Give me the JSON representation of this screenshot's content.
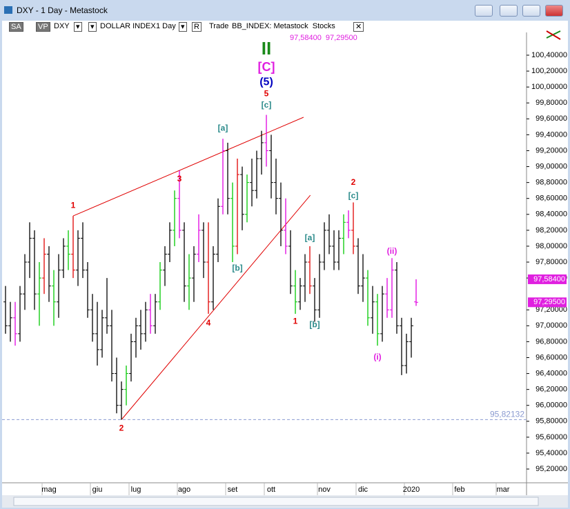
{
  "window": {
    "title": "DXY - 1 Day - Metastock",
    "toolbar": [
      "SA",
      "VP",
      "DXY",
      "DOLLAR INDEX",
      "1 Day",
      "R",
      "Trade",
      "BB_INDEX: Metastock  Stocks"
    ]
  },
  "chart_data": {
    "type": "ohlc",
    "open": [
      97.3,
      97.0,
      97.1,
      96.9,
      97.4,
      97.8,
      98.1,
      97.4,
      97.6,
      97.9,
      97.5,
      97.3,
      97.7,
      98.0,
      97.9,
      97.7,
      98.1,
      97.7,
      97.2,
      96.9,
      96.7,
      97.1,
      97.0,
      96.4,
      96.0,
      96.2,
      96.4,
      96.8,
      97.0,
      96.9,
      97.2,
      97.0,
      97.3,
      97.7,
      97.9,
      98.2,
      98.6,
      98.2,
      97.5,
      97.6,
      97.9,
      98.2,
      97.8,
      97.3,
      97.9,
      98.5,
      99.2,
      98.6,
      98.0,
      98.9,
      98.4,
      98.8,
      98.7,
      99.1,
      99.3,
      99.2,
      98.8,
      98.6,
      98.2,
      98.0,
      97.5,
      97.3,
      97.5,
      97.8,
      97.5,
      97.2,
      97.8,
      98.2,
      98.0,
      97.8,
      98.1,
      98.3,
      98.2,
      98.0,
      97.5,
      97.6,
      97.1,
      97.3,
      96.9,
      97.4,
      97.2,
      97.7,
      97.0,
      96.5,
      96.8,
      97.3
    ],
    "high": [
      97.5,
      97.3,
      97.3,
      97.5,
      97.9,
      98.3,
      98.2,
      97.8,
      98.1,
      98.0,
      97.7,
      97.9,
      98.1,
      98.2,
      98.38,
      98.2,
      98.3,
      97.8,
      97.4,
      97.3,
      97.2,
      97.6,
      97.2,
      96.6,
      96.3,
      96.5,
      96.9,
      97.1,
      97.2,
      97.3,
      97.4,
      97.4,
      97.8,
      98.0,
      98.3,
      98.7,
      98.95,
      98.3,
      97.9,
      98.0,
      98.4,
      98.3,
      98.3,
      98.0,
      98.6,
      99.35,
      99.3,
      98.8,
      99.1,
      99.0,
      98.9,
      99.1,
      99.2,
      99.45,
      99.65,
      99.4,
      99.1,
      98.8,
      98.6,
      98.2,
      97.7,
      97.6,
      97.9,
      98.0,
      97.6,
      97.9,
      98.3,
      98.4,
      98.2,
      98.2,
      98.4,
      98.45,
      98.55,
      98.1,
      97.9,
      97.7,
      97.5,
      97.4,
      97.5,
      97.6,
      97.85,
      97.8,
      97.1,
      96.9,
      97.1,
      97.584
    ],
    "low": [
      96.9,
      96.8,
      96.75,
      96.8,
      97.2,
      97.6,
      97.2,
      97.0,
      97.4,
      97.3,
      97.0,
      97.1,
      97.6,
      97.7,
      97.6,
      97.5,
      97.6,
      97.1,
      96.8,
      96.5,
      96.6,
      96.9,
      96.3,
      95.9,
      95.82,
      96.0,
      96.3,
      96.6,
      96.7,
      96.8,
      96.9,
      96.9,
      97.2,
      97.5,
      97.8,
      98.0,
      98.1,
      97.3,
      97.2,
      97.3,
      97.8,
      97.6,
      97.15,
      97.2,
      97.8,
      98.4,
      98.4,
      97.8,
      97.9,
      98.2,
      98.3,
      98.5,
      98.6,
      98.9,
      99.0,
      98.6,
      98.4,
      98.0,
      97.9,
      97.4,
      97.15,
      97.2,
      97.3,
      97.4,
      97.05,
      97.1,
      97.7,
      97.9,
      97.7,
      97.7,
      97.9,
      98.1,
      97.9,
      97.4,
      97.3,
      97.0,
      96.9,
      96.75,
      96.8,
      97.1,
      97.1,
      96.9,
      96.38,
      96.4,
      96.6,
      97.25
    ],
    "close": [
      97.0,
      97.1,
      96.9,
      97.4,
      97.8,
      98.1,
      97.4,
      97.6,
      97.9,
      97.5,
      97.3,
      97.7,
      98.0,
      97.9,
      97.7,
      98.1,
      97.7,
      97.2,
      96.9,
      96.7,
      97.1,
      97.0,
      96.4,
      96.0,
      96.2,
      96.4,
      96.8,
      97.0,
      96.9,
      97.2,
      97.0,
      97.3,
      97.7,
      97.9,
      98.2,
      98.6,
      98.2,
      97.5,
      97.6,
      97.9,
      98.2,
      97.8,
      97.3,
      97.9,
      98.5,
      99.2,
      98.6,
      98.0,
      98.9,
      98.4,
      98.8,
      98.7,
      99.1,
      99.3,
      99.2,
      98.8,
      98.6,
      98.2,
      98.0,
      97.5,
      97.3,
      97.5,
      97.8,
      97.5,
      97.2,
      97.8,
      98.2,
      98.0,
      97.8,
      98.1,
      98.3,
      98.2,
      98.0,
      97.5,
      97.6,
      97.1,
      97.3,
      96.9,
      97.4,
      97.2,
      97.7,
      97.0,
      96.5,
      96.8,
      97.0,
      97.295
    ],
    "bar_colors": [
      "#000000",
      "#000000",
      "#e000e0",
      "#000000",
      "#000000",
      "#000000",
      "#000000",
      "#00c800",
      "#e00000",
      "#000000",
      "#00c800",
      "#000000",
      "#000000",
      "#00c800",
      "#e00000",
      "#000000",
      "#000000",
      "#000000",
      "#000000",
      "#000000",
      "#000000",
      "#000000",
      "#000000",
      "#000000",
      "#000000",
      "#00c800",
      "#000000",
      "#000000",
      "#000000",
      "#000000",
      "#e000e0",
      "#000000",
      "#00c800",
      "#000000",
      "#000000",
      "#00c800",
      "#e000e0",
      "#000000",
      "#00c800",
      "#000000",
      "#e000e0",
      "#000000",
      "#e00000",
      "#000000",
      "#000000",
      "#e000e0",
      "#000000",
      "#00c800",
      "#e00000",
      "#000000",
      "#00c800",
      "#000000",
      "#000000",
      "#000000",
      "#e000e0",
      "#000000",
      "#000000",
      "#000000",
      "#e000e0",
      "#000000",
      "#00c800",
      "#000000",
      "#000000",
      "#e00000",
      "#000000",
      "#000000",
      "#000000",
      "#000000",
      "#000000",
      "#000000",
      "#00c800",
      "#e000e0",
      "#e00000",
      "#000000",
      "#000000",
      "#00c800",
      "#000000",
      "#00c800",
      "#000000",
      "#e000e0",
      "#e000e0",
      "#000000",
      "#000000",
      "#000000",
      "#000000",
      "#e000e0"
    ],
    "xlim": [
      -1,
      107
    ],
    "xticks": [
      {
        "value": 9,
        "label": "mag"
      },
      {
        "value": 19,
        "label": "giu"
      },
      {
        "value": 27,
        "label": "lug"
      },
      {
        "value": 37,
        "label": "ago"
      },
      {
        "value": 47,
        "label": "set"
      },
      {
        "value": 55,
        "label": "ott"
      },
      {
        "value": 66,
        "label": "nov"
      },
      {
        "value": 74,
        "label": "dic"
      },
      {
        "value": 84,
        "label": "2020"
      },
      {
        "value": 94,
        "label": "feb"
      },
      {
        "value": 103,
        "label": "mar"
      }
    ],
    "ylim": [
      95.027,
      100.556
    ],
    "yticks": [
      {
        "value": 95.2,
        "label": "95,20000"
      },
      {
        "value": 95.4,
        "label": "95,40000"
      },
      {
        "value": 95.6,
        "label": "95,60000"
      },
      {
        "value": 95.8,
        "label": "95,80000"
      },
      {
        "value": 96.0,
        "label": "96,00000"
      },
      {
        "value": 96.2,
        "label": "96,20000"
      },
      {
        "value": 96.4,
        "label": "96,40000"
      },
      {
        "value": 96.6,
        "label": "96,60000"
      },
      {
        "value": 96.8,
        "label": "96,80000"
      },
      {
        "value": 97.0,
        "label": "97,00000"
      },
      {
        "value": 97.2,
        "label": "97,20000"
      },
      {
        "value": 97.6,
        "label": "97,60000"
      },
      {
        "value": 97.8,
        "label": "97,80000"
      },
      {
        "value": 98.0,
        "label": "98,00000"
      },
      {
        "value": 98.2,
        "label": "98,20000"
      },
      {
        "value": 98.4,
        "label": "98,40000"
      },
      {
        "value": 98.6,
        "label": "98,60000"
      },
      {
        "value": 98.8,
        "label": "98,80000"
      },
      {
        "value": 99.0,
        "label": "99,00000"
      },
      {
        "value": 99.2,
        "label": "99,20000"
      },
      {
        "value": 99.4,
        "label": "99,40000"
      },
      {
        "value": 99.6,
        "label": "99,60000"
      },
      {
        "value": 99.8,
        "label": "99,80000"
      },
      {
        "value": 100.0,
        "label": "100,00000"
      },
      {
        "value": 100.2,
        "label": "100,20000"
      },
      {
        "value": 100.4,
        "label": "100,40000"
      }
    ],
    "hline": {
      "value": 95.82132,
      "label": "95,82132",
      "color": "#8a9ad0"
    },
    "price_labels": [
      {
        "value": 97.584,
        "label": "97,58400"
      },
      {
        "value": 97.295,
        "label": "97,29500"
      }
    ],
    "price_label_color": "#e020e0",
    "trend_lines": [
      {
        "x": [
          14,
          61.7
        ],
        "y": [
          98.38,
          99.62
        ]
      },
      {
        "x": [
          24,
          63.1
        ],
        "y": [
          95.82,
          98.64
        ]
      }
    ],
    "trend_color": "#e00000",
    "annotations": [
      {
        "text": "1",
        "x": 14,
        "y": 98.51,
        "color": "#e00000"
      },
      {
        "text": "2",
        "x": 24,
        "y": 95.71,
        "color": "#e00000"
      },
      {
        "text": "3",
        "x": 36,
        "y": 98.84,
        "color": "#e00000"
      },
      {
        "text": "4",
        "x": 42,
        "y": 97.03,
        "color": "#e00000"
      },
      {
        "text": "5",
        "x": 54,
        "y": 99.91,
        "color": "#e00000"
      },
      {
        "text": "[c]",
        "x": 54,
        "y": 99.77,
        "color": "#2a8a8a"
      },
      {
        "text": "(5)",
        "x": 54,
        "y": 100.06,
        "color": "#0000c0"
      },
      {
        "text": "[C]",
        "x": 54,
        "y": 100.24,
        "color": "#e020e0"
      },
      {
        "text": "II",
        "x": 54,
        "y": 100.47,
        "color": "#1a8a1a"
      },
      {
        "text": "[a]",
        "x": 45,
        "y": 99.48,
        "color": "#2a8a8a"
      },
      {
        "text": "[b]",
        "x": 48,
        "y": 97.72,
        "color": "#2a8a8a"
      },
      {
        "text": "1",
        "x": 60,
        "y": 97.05,
        "color": "#e00000"
      },
      {
        "text": "[a]",
        "x": 63,
        "y": 98.1,
        "color": "#2a8a8a"
      },
      {
        "text": "[b]",
        "x": 64,
        "y": 97.01,
        "color": "#2a8a8a"
      },
      {
        "text": "2",
        "x": 72,
        "y": 98.8,
        "color": "#e00000"
      },
      {
        "text": "[c]",
        "x": 72,
        "y": 98.63,
        "color": "#2a8a8a"
      },
      {
        "text": "(ii)",
        "x": 80,
        "y": 97.93,
        "color": "#e020e0"
      },
      {
        "text": "(i)",
        "x": 77,
        "y": 96.6,
        "color": "#e020e0"
      }
    ]
  }
}
